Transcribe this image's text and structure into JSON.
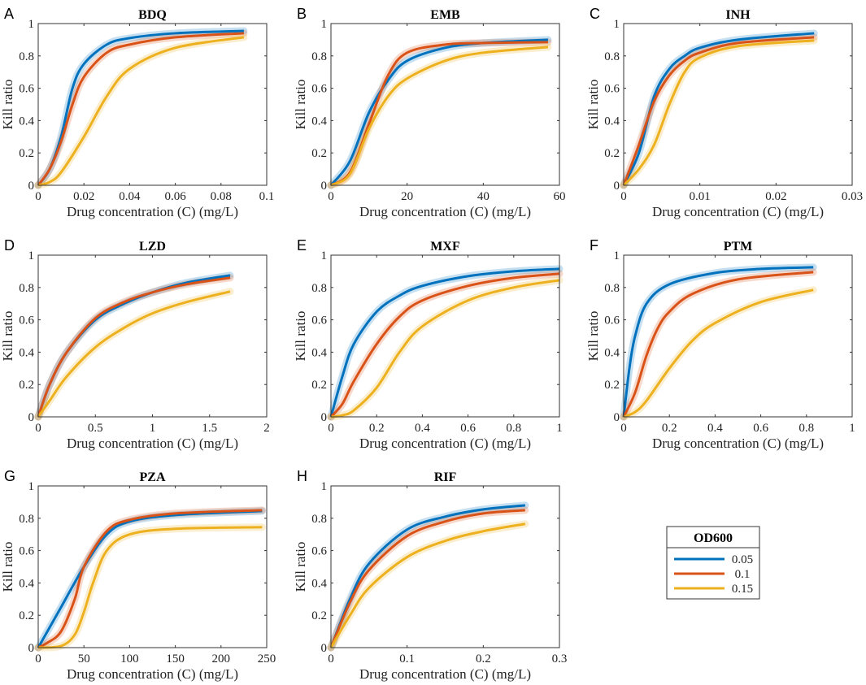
{
  "chart_data": {
    "type": "line",
    "colors": {
      "0.05": "#0072BD",
      "0.1": "#D95319",
      "0.15": "#EDB120"
    },
    "legend": {
      "title": "OD600",
      "entries": [
        "0.05",
        "0.1",
        "0.15"
      ],
      "placement": "bottom-right"
    },
    "panels": [
      {
        "letter": "A",
        "title": "BDQ",
        "xlabel": "Drug concentration (C) (mg/L)",
        "ylabel": "Kill ratio",
        "xlim": [
          0,
          0.1
        ],
        "ylim": [
          0,
          1
        ],
        "xticks": [
          "0",
          "0.02",
          "0.04",
          "0.06",
          "0.08",
          "0.1"
        ],
        "xtickvals": [
          0,
          0.02,
          0.04,
          0.06,
          0.08,
          0.1
        ],
        "series": [
          {
            "name": "0.05",
            "x": [
              0,
              0.005,
              0.01,
              0.015,
              0.02,
              0.03,
              0.04,
              0.06,
              0.09
            ],
            "y": [
              0,
              0.1,
              0.3,
              0.6,
              0.75,
              0.87,
              0.91,
              0.94,
              0.955
            ]
          },
          {
            "name": "0.1",
            "x": [
              0,
              0.005,
              0.01,
              0.015,
              0.02,
              0.03,
              0.04,
              0.06,
              0.09
            ],
            "y": [
              0,
              0.1,
              0.27,
              0.5,
              0.67,
              0.82,
              0.87,
              0.915,
              0.94
            ]
          },
          {
            "name": "0.15",
            "x": [
              0,
              0.005,
              0.01,
              0.02,
              0.03,
              0.04,
              0.06,
              0.09
            ],
            "y": [
              0,
              0.02,
              0.08,
              0.3,
              0.55,
              0.72,
              0.85,
              0.915
            ]
          }
        ]
      },
      {
        "letter": "B",
        "title": "EMB",
        "xlabel": "Drug concentration (C) (mg/L)",
        "ylabel": "Kill ratio",
        "xlim": [
          0,
          60
        ],
        "ylim": [
          0,
          1
        ],
        "xticks": [
          "0",
          "20",
          "40",
          "60"
        ],
        "xtickvals": [
          0,
          20,
          40,
          60
        ],
        "series": [
          {
            "name": "0.05",
            "x": [
              0,
              5,
              10,
              15,
              20,
              30,
              40,
              57
            ],
            "y": [
              0,
              0.15,
              0.45,
              0.65,
              0.77,
              0.85,
              0.88,
              0.9
            ]
          },
          {
            "name": "0.1",
            "x": [
              0,
              5,
              10,
              15,
              20,
              30,
              40,
              57
            ],
            "y": [
              0,
              0.08,
              0.38,
              0.68,
              0.82,
              0.87,
              0.88,
              0.885
            ]
          },
          {
            "name": "0.15",
            "x": [
              0,
              5,
              10,
              15,
              20,
              30,
              40,
              57
            ],
            "y": [
              0,
              0.07,
              0.35,
              0.55,
              0.66,
              0.77,
              0.82,
              0.855
            ]
          }
        ]
      },
      {
        "letter": "C",
        "title": "INH",
        "xlabel": "Drug concentration (C) (mg/L)",
        "ylabel": "Kill ratio",
        "xlim": [
          0,
          0.03
        ],
        "ylim": [
          0,
          1
        ],
        "xticks": [
          "0",
          "0.01",
          "0.02",
          "0.03"
        ],
        "xtickvals": [
          0,
          0.01,
          0.02,
          0.03
        ],
        "series": [
          {
            "name": "0.05",
            "x": [
              0,
              0.002,
              0.004,
              0.006,
              0.008,
              0.01,
              0.015,
              0.025
            ],
            "y": [
              0,
              0.2,
              0.55,
              0.72,
              0.8,
              0.85,
              0.9,
              0.94
            ]
          },
          {
            "name": "0.1",
            "x": [
              0,
              0.002,
              0.004,
              0.006,
              0.008,
              0.01,
              0.015,
              0.025
            ],
            "y": [
              0,
              0.25,
              0.52,
              0.68,
              0.77,
              0.82,
              0.88,
              0.915
            ]
          },
          {
            "name": "0.15",
            "x": [
              0,
              0.002,
              0.004,
              0.006,
              0.008,
              0.01,
              0.015,
              0.025
            ],
            "y": [
              0,
              0.1,
              0.25,
              0.5,
              0.7,
              0.79,
              0.86,
              0.895
            ]
          }
        ]
      },
      {
        "letter": "D",
        "title": "LZD",
        "xlabel": "Drug concentration (C) (mg/L)",
        "ylabel": "Kill ratio",
        "xlim": [
          0,
          2
        ],
        "ylim": [
          0,
          1
        ],
        "xticks": [
          "0",
          "0.5",
          "1",
          "1.5",
          "2"
        ],
        "xtickvals": [
          0,
          0.5,
          1,
          1.5,
          2
        ],
        "series": [
          {
            "name": "0.05",
            "x": [
              0,
              0.1,
              0.25,
              0.5,
              0.75,
              1,
              1.3,
              1.68
            ],
            "y": [
              0,
              0.2,
              0.4,
              0.6,
              0.7,
              0.77,
              0.83,
              0.875
            ]
          },
          {
            "name": "0.1",
            "x": [
              0,
              0.1,
              0.25,
              0.5,
              0.75,
              1,
              1.3,
              1.68
            ],
            "y": [
              0,
              0.2,
              0.4,
              0.61,
              0.71,
              0.77,
              0.82,
              0.86
            ]
          },
          {
            "name": "0.15",
            "x": [
              0,
              0.1,
              0.25,
              0.5,
              0.75,
              1,
              1.3,
              1.68
            ],
            "y": [
              0,
              0.1,
              0.25,
              0.43,
              0.55,
              0.64,
              0.71,
              0.775
            ]
          }
        ]
      },
      {
        "letter": "E",
        "title": "MXF",
        "xlabel": "Drug concentration (C) (mg/L)",
        "ylabel": "Kill ratio",
        "xlim": [
          0,
          1
        ],
        "ylim": [
          0,
          1
        ],
        "xticks": [
          "0",
          "0.2",
          "0.4",
          "0.6",
          "0.8",
          "1"
        ],
        "xtickvals": [
          0,
          0.2,
          0.4,
          0.6,
          0.8,
          1
        ],
        "series": [
          {
            "name": "0.05",
            "x": [
              0,
              0.05,
              0.1,
              0.2,
              0.3,
              0.4,
              0.6,
              0.8,
              1
            ],
            "y": [
              0,
              0.25,
              0.45,
              0.65,
              0.75,
              0.81,
              0.87,
              0.9,
              0.915
            ]
          },
          {
            "name": "0.1",
            "x": [
              0,
              0.05,
              0.1,
              0.2,
              0.3,
              0.4,
              0.6,
              0.8,
              1
            ],
            "y": [
              0,
              0.08,
              0.22,
              0.45,
              0.62,
              0.72,
              0.81,
              0.86,
              0.885
            ]
          },
          {
            "name": "0.15",
            "x": [
              0,
              0.05,
              0.1,
              0.2,
              0.3,
              0.4,
              0.6,
              0.8,
              1
            ],
            "y": [
              0,
              0.01,
              0.04,
              0.18,
              0.4,
              0.56,
              0.72,
              0.8,
              0.845
            ]
          }
        ]
      },
      {
        "letter": "F",
        "title": "PTM",
        "xlabel": "Drug concentration (C) (mg/L)",
        "ylabel": "Kill ratio",
        "xlim": [
          0,
          1
        ],
        "ylim": [
          0,
          1
        ],
        "xticks": [
          "0",
          "0.2",
          "0.4",
          "0.6",
          "0.8",
          "1"
        ],
        "xtickvals": [
          0,
          0.2,
          0.4,
          0.6,
          0.8,
          1
        ],
        "series": [
          {
            "name": "0.05",
            "x": [
              0,
              0.025,
              0.05,
              0.1,
              0.2,
              0.4,
              0.6,
              0.83
            ],
            "y": [
              0,
              0.3,
              0.5,
              0.7,
              0.82,
              0.89,
              0.915,
              0.925
            ]
          },
          {
            "name": "0.1",
            "x": [
              0,
              0.05,
              0.1,
              0.15,
              0.2,
              0.3,
              0.5,
              0.83
            ],
            "y": [
              0,
              0.15,
              0.38,
              0.55,
              0.65,
              0.76,
              0.85,
              0.895
            ]
          },
          {
            "name": "0.15",
            "x": [
              0,
              0.05,
              0.1,
              0.2,
              0.3,
              0.4,
              0.6,
              0.83
            ],
            "y": [
              0,
              0.03,
              0.1,
              0.3,
              0.47,
              0.58,
              0.71,
              0.785
            ]
          }
        ]
      },
      {
        "letter": "G",
        "title": "PZA",
        "xlabel": "Drug concentration (C) (mg/L)",
        "ylabel": "Kill ratio",
        "xlim": [
          0,
          250
        ],
        "ylim": [
          0,
          1
        ],
        "xticks": [
          "0",
          "50",
          "100",
          "150",
          "200",
          "250"
        ],
        "xtickvals": [
          0,
          50,
          100,
          150,
          200,
          250
        ],
        "series": [
          {
            "name": "0.05",
            "x": [
              0,
              10,
              25,
              50,
              75,
              100,
              150,
              245
            ],
            "y": [
              0,
              0.1,
              0.25,
              0.5,
              0.7,
              0.78,
              0.82,
              0.845
            ]
          },
          {
            "name": "0.1",
            "x": [
              0,
              10,
              25,
              40,
              50,
              75,
              100,
              150,
              245
            ],
            "y": [
              0,
              0.03,
              0.1,
              0.3,
              0.5,
              0.72,
              0.79,
              0.83,
              0.85
            ]
          },
          {
            "name": "0.15",
            "x": [
              0,
              25,
              40,
              50,
              60,
              75,
              100,
              150,
              245
            ],
            "y": [
              0,
              0.01,
              0.08,
              0.22,
              0.4,
              0.6,
              0.7,
              0.735,
              0.745
            ]
          }
        ]
      },
      {
        "letter": "H",
        "title": "RIF",
        "xlabel": "Drug concentration (C) (mg/L)",
        "ylabel": "Kill ratio",
        "xlim": [
          0,
          0.3
        ],
        "ylim": [
          0,
          1
        ],
        "xticks": [
          "0",
          "0.1",
          "0.2",
          "0.3"
        ],
        "xtickvals": [
          0,
          0.1,
          0.2,
          0.3
        ],
        "series": [
          {
            "name": "0.05",
            "x": [
              0,
              0.025,
              0.05,
              0.1,
              0.15,
              0.2,
              0.255
            ],
            "y": [
              0,
              0.3,
              0.52,
              0.73,
              0.81,
              0.855,
              0.88
            ]
          },
          {
            "name": "0.1",
            "x": [
              0,
              0.025,
              0.05,
              0.1,
              0.15,
              0.2,
              0.255
            ],
            "y": [
              0,
              0.28,
              0.48,
              0.69,
              0.78,
              0.83,
              0.85
            ]
          },
          {
            "name": "0.15",
            "x": [
              0,
              0.025,
              0.05,
              0.1,
              0.15,
              0.2,
              0.255
            ],
            "y": [
              0,
              0.2,
              0.37,
              0.56,
              0.66,
              0.72,
              0.765
            ]
          }
        ]
      }
    ],
    "yticks": [
      "0",
      "0.2",
      "0.4",
      "0.6",
      "0.8",
      "1"
    ]
  }
}
